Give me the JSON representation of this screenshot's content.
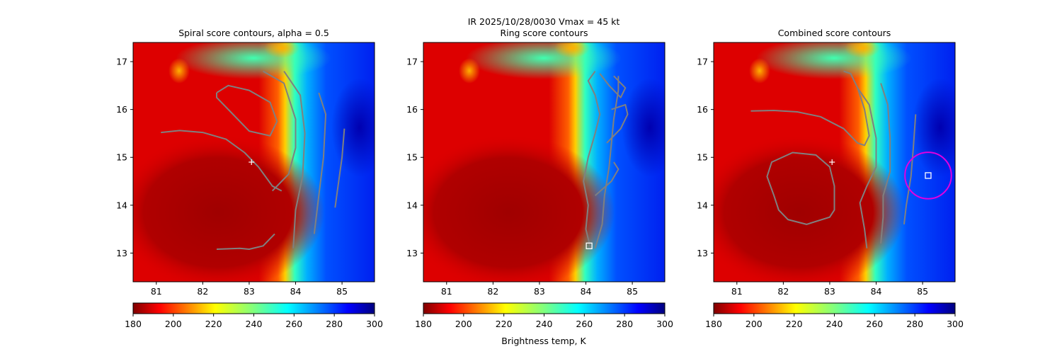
{
  "figure": {
    "suptitle_line1": "IR  2025/10/28/0030    Vmax = 45 kt",
    "colorbar_label": "Brightness temp, K"
  },
  "colors": {
    "contour": "#808080",
    "marker": "#ffffff",
    "circle": "#e000e0"
  },
  "chart_data": [
    {
      "type": "heatmap",
      "title": "Spiral score contours, alpha =  0.5",
      "xlim": [
        80.5,
        85.7
      ],
      "ylim": [
        12.4,
        17.4
      ],
      "xticks": [
        "81",
        "82",
        "83",
        "84",
        "85"
      ],
      "yticks": [
        "13",
        "14",
        "15",
        "16",
        "17"
      ],
      "xtick_values": [
        81,
        82,
        83,
        84,
        85
      ],
      "ytick_values": [
        13,
        14,
        15,
        16,
        17
      ],
      "colorbar": {
        "min": 180,
        "max": 300,
        "ticks": [
          "180",
          "200",
          "220",
          "240",
          "260",
          "280",
          "300"
        ],
        "tick_values": [
          180,
          200,
          220,
          240,
          260,
          280,
          300
        ],
        "colormap": "jet"
      },
      "contours": [
        [
          [
            81.1,
            15.52
          ],
          [
            81.5,
            15.56
          ],
          [
            82.0,
            15.52
          ],
          [
            82.5,
            15.38
          ],
          [
            82.9,
            15.1
          ],
          [
            83.2,
            14.8
          ],
          [
            83.5,
            14.4
          ],
          [
            83.7,
            14.3
          ]
        ],
        [
          [
            82.3,
            16.35
          ],
          [
            82.55,
            16.5
          ],
          [
            83.0,
            16.4
          ],
          [
            83.45,
            16.15
          ],
          [
            83.6,
            15.75
          ],
          [
            83.45,
            15.45
          ],
          [
            83.0,
            15.55
          ],
          [
            82.6,
            15.95
          ],
          [
            82.3,
            16.25
          ],
          [
            82.3,
            16.35
          ]
        ],
        [
          [
            83.5,
            14.3
          ],
          [
            83.85,
            14.65
          ],
          [
            84.0,
            15.2
          ],
          [
            84.0,
            15.8
          ],
          [
            83.75,
            16.55
          ],
          [
            83.3,
            16.8
          ]
        ],
        [
          [
            83.75,
            16.8
          ],
          [
            84.1,
            16.3
          ],
          [
            84.2,
            15.5
          ],
          [
            84.15,
            14.6
          ],
          [
            84.0,
            13.9
          ],
          [
            83.95,
            13.1
          ]
        ],
        [
          [
            84.5,
            16.35
          ],
          [
            84.65,
            15.9
          ],
          [
            84.6,
            15.0
          ],
          [
            84.5,
            14.2
          ],
          [
            84.4,
            13.4
          ]
        ],
        [
          [
            85.05,
            15.6
          ],
          [
            85.0,
            15.0
          ],
          [
            84.9,
            14.3
          ],
          [
            84.85,
            13.95
          ]
        ],
        [
          [
            82.3,
            13.08
          ],
          [
            82.8,
            13.1
          ],
          [
            83.0,
            13.08
          ],
          [
            83.3,
            13.15
          ],
          [
            83.55,
            13.4
          ]
        ]
      ],
      "markers": [
        {
          "kind": "plus",
          "x": 83.05,
          "y": 14.9
        }
      ]
    },
    {
      "type": "heatmap",
      "title": "Ring score contours",
      "title_top": "IR  2025/10/28/0030    Vmax = 45 kt",
      "xlim": [
        80.5,
        85.7
      ],
      "ylim": [
        12.4,
        17.4
      ],
      "xticks": [
        "81",
        "82",
        "83",
        "84",
        "85"
      ],
      "yticks": [
        "13",
        "14",
        "15",
        "16",
        "17"
      ],
      "xtick_values": [
        81,
        82,
        83,
        84,
        85
      ],
      "ytick_values": [
        13,
        14,
        15,
        16,
        17
      ],
      "colorbar": {
        "min": 180,
        "max": 300,
        "ticks": [
          "180",
          "200",
          "220",
          "240",
          "260",
          "280",
          "300"
        ],
        "tick_values": [
          180,
          200,
          220,
          240,
          260,
          280,
          300
        ],
        "colormap": "jet",
        "label": "Brightness temp, K"
      },
      "contours": [
        [
          [
            84.1,
            13.1
          ],
          [
            84.0,
            13.5
          ],
          [
            84.05,
            14.0
          ],
          [
            83.95,
            14.5
          ],
          [
            84.05,
            15.0
          ],
          [
            84.2,
            15.5
          ],
          [
            84.3,
            15.9
          ],
          [
            84.2,
            16.3
          ],
          [
            84.05,
            16.6
          ],
          [
            84.2,
            16.8
          ]
        ],
        [
          [
            84.2,
            13.1
          ],
          [
            84.35,
            13.6
          ],
          [
            84.4,
            14.2
          ],
          [
            84.5,
            14.8
          ],
          [
            84.55,
            15.3
          ],
          [
            84.6,
            15.8
          ],
          [
            84.7,
            16.4
          ],
          [
            84.7,
            16.7
          ]
        ],
        [
          [
            84.3,
            16.75
          ],
          [
            84.5,
            16.5
          ],
          [
            84.75,
            16.25
          ],
          [
            84.85,
            16.45
          ],
          [
            84.6,
            16.7
          ]
        ],
        [
          [
            84.45,
            15.3
          ],
          [
            84.75,
            15.6
          ],
          [
            84.9,
            15.9
          ],
          [
            84.85,
            16.1
          ],
          [
            84.55,
            16.0
          ]
        ],
        [
          [
            84.2,
            14.2
          ],
          [
            84.55,
            14.5
          ],
          [
            84.7,
            14.75
          ],
          [
            84.6,
            14.9
          ]
        ]
      ],
      "markers": [
        {
          "kind": "square",
          "x": 84.07,
          "y": 13.15
        }
      ]
    },
    {
      "type": "heatmap",
      "title": "Combined score contours",
      "xlim": [
        80.5,
        85.7
      ],
      "ylim": [
        12.4,
        17.4
      ],
      "xticks": [
        "81",
        "82",
        "83",
        "84",
        "85"
      ],
      "yticks": [
        "13",
        "14",
        "15",
        "16",
        "17"
      ],
      "xtick_values": [
        81,
        82,
        83,
        84,
        85
      ],
      "ytick_values": [
        13,
        14,
        15,
        16,
        17
      ],
      "colorbar": {
        "min": 180,
        "max": 300,
        "ticks": [
          "180",
          "200",
          "220",
          "240",
          "260",
          "280",
          "300"
        ],
        "tick_values": [
          180,
          200,
          220,
          240,
          260,
          280,
          300
        ],
        "colormap": "jet"
      },
      "contours": [
        [
          [
            81.3,
            15.97
          ],
          [
            81.8,
            15.98
          ],
          [
            82.3,
            15.95
          ],
          [
            82.8,
            15.85
          ],
          [
            83.3,
            15.6
          ],
          [
            83.6,
            15.3
          ],
          [
            83.75,
            15.25
          ],
          [
            83.85,
            15.45
          ],
          [
            83.75,
            16.0
          ],
          [
            83.6,
            16.45
          ],
          [
            83.45,
            16.75
          ],
          [
            83.3,
            16.8
          ]
        ],
        [
          [
            81.8,
            14.2
          ],
          [
            81.65,
            14.6
          ],
          [
            81.75,
            14.9
          ],
          [
            82.2,
            15.1
          ],
          [
            82.7,
            15.05
          ],
          [
            83.0,
            14.8
          ],
          [
            83.1,
            14.4
          ],
          [
            83.1,
            13.9
          ],
          [
            83.0,
            13.75
          ],
          [
            82.5,
            13.6
          ],
          [
            82.1,
            13.7
          ],
          [
            81.9,
            13.9
          ],
          [
            81.8,
            14.2
          ]
        ],
        [
          [
            83.6,
            16.45
          ],
          [
            83.85,
            16.1
          ],
          [
            84.0,
            15.4
          ],
          [
            84.0,
            14.8
          ],
          [
            83.8,
            14.4
          ],
          [
            83.65,
            14.05
          ],
          [
            83.75,
            13.5
          ],
          [
            83.8,
            13.1
          ]
        ],
        [
          [
            84.1,
            16.55
          ],
          [
            84.25,
            16.1
          ],
          [
            84.3,
            15.4
          ],
          [
            84.3,
            14.7
          ],
          [
            84.15,
            14.2
          ],
          [
            84.15,
            13.75
          ],
          [
            84.1,
            13.2
          ]
        ],
        [
          [
            84.85,
            15.9
          ],
          [
            84.8,
            15.2
          ],
          [
            84.75,
            14.6
          ],
          [
            84.65,
            14.0
          ],
          [
            84.6,
            13.6
          ]
        ]
      ],
      "markers": [
        {
          "kind": "plus",
          "x": 83.05,
          "y": 14.9
        },
        {
          "kind": "circle",
          "x": 85.12,
          "y": 14.62,
          "r_deg": 0.5
        },
        {
          "kind": "square",
          "x": 85.12,
          "y": 14.62
        }
      ]
    }
  ]
}
